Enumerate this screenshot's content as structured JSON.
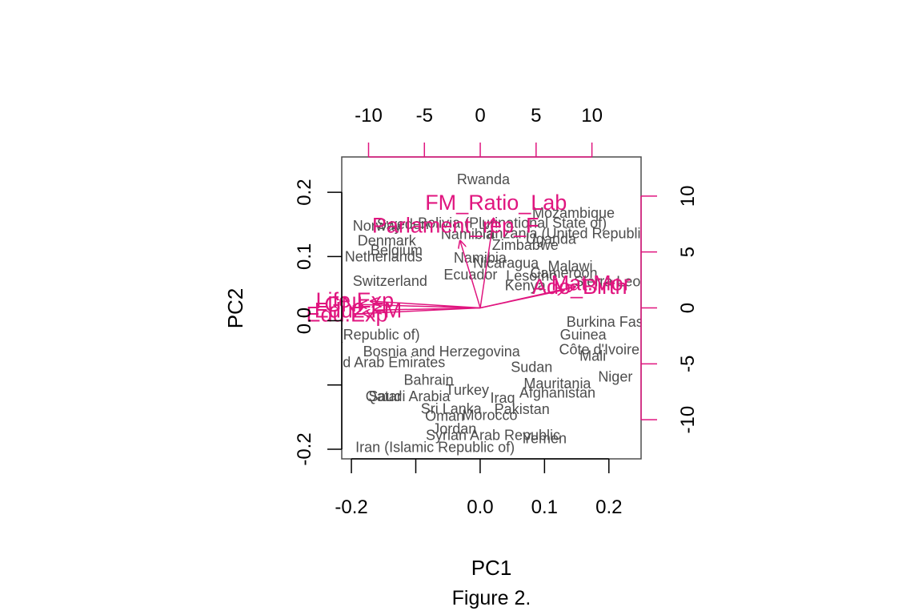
{
  "chart_data": {
    "type": "scatter",
    "xlabel": "PC1",
    "ylabel": "PC2",
    "caption": "Figure 2.",
    "colors": {
      "scores": "#4d4d4d",
      "loadings": "#e0157f",
      "frame": "#4d4d4d"
    },
    "score_axes": {
      "xlim": [
        -0.215,
        0.25
      ],
      "ylim": [
        -0.215,
        0.255
      ],
      "x_ticks": [
        -0.2,
        -0.1,
        0.0,
        0.1,
        0.2
      ],
      "x_tick_labels": [
        "-0.2",
        "",
        "0.0",
        "0.1",
        "0.2"
      ],
      "y_ticks": [
        -0.2,
        -0.1,
        0.0,
        0.1,
        0.2
      ],
      "y_tick_labels": [
        "-0.2",
        "",
        "0.0",
        "0.1",
        "0.2"
      ]
    },
    "loading_axes": {
      "xlim": [
        -12.4,
        14.4
      ],
      "ylim": [
        -13.5,
        13.5
      ],
      "x_ticks": [
        -10,
        -5,
        0,
        5,
        10
      ],
      "x_tick_labels": [
        "-10",
        "-5",
        "0",
        "5",
        "10"
      ],
      "y_ticks": [
        -10,
        -5,
        0,
        5,
        10
      ],
      "y_tick_labels": [
        "-10",
        "-5",
        "0",
        "5",
        "10"
      ]
    },
    "countries": [
      {
        "name": "Rwanda",
        "x": 0.005,
        "y": 0.22
      },
      {
        "name": "Mozambique",
        "x": 0.145,
        "y": 0.168
      },
      {
        "name": "Bolivia (Plurinational State of)",
        "x": 0.05,
        "y": 0.152
      },
      {
        "name": "Norway",
        "x": -0.16,
        "y": 0.148
      },
      {
        "name": "Sweden",
        "x": -0.12,
        "y": 0.15
      },
      {
        "name": "Tanzania (United Republic",
        "x": 0.13,
        "y": 0.136
      },
      {
        "name": "Uganda",
        "x": 0.11,
        "y": 0.127
      },
      {
        "name": "Namibia",
        "x": -0.02,
        "y": 0.135
      },
      {
        "name": "Denmark",
        "x": -0.145,
        "y": 0.125
      },
      {
        "name": "Zimbabwe",
        "x": 0.07,
        "y": 0.118
      },
      {
        "name": "Belgium",
        "x": -0.13,
        "y": 0.11
      },
      {
        "name": "Netherlands",
        "x": -0.15,
        "y": 0.1
      },
      {
        "name": "Namibia",
        "x": 0.0,
        "y": 0.098
      },
      {
        "name": "Nicaragua",
        "x": 0.04,
        "y": 0.09
      },
      {
        "name": "Malawi",
        "x": 0.14,
        "y": 0.085
      },
      {
        "name": "Ecuador",
        "x": -0.015,
        "y": 0.072
      },
      {
        "name": "Lesotho",
        "x": 0.08,
        "y": 0.07
      },
      {
        "name": "Cameroon",
        "x": 0.13,
        "y": 0.074
      },
      {
        "name": "Sierra Leone",
        "x": 0.21,
        "y": 0.061
      },
      {
        "name": "Switzerland",
        "x": -0.14,
        "y": 0.062
      },
      {
        "name": "Kenya",
        "x": 0.07,
        "y": 0.055
      },
      {
        "name": "Burkina Faso",
        "x": 0.2,
        "y": -0.002
      },
      {
        "name": "Guinea",
        "x": 0.16,
        "y": -0.022
      },
      {
        "name": "Côte d'Ivoire",
        "x": 0.185,
        "y": -0.045
      },
      {
        "name": "Mali",
        "x": 0.175,
        "y": -0.055
      },
      {
        "name": "Niger",
        "x": 0.21,
        "y": -0.087
      },
      {
        "name": "Mauritania",
        "x": 0.12,
        "y": -0.098
      },
      {
        "name": "Afghanistan",
        "x": 0.12,
        "y": -0.112
      },
      {
        "name": "Sudan",
        "x": 0.08,
        "y": -0.072
      },
      {
        "name": "Pakistan",
        "x": 0.065,
        "y": -0.138
      },
      {
        "name": "Syrian Arab Republic",
        "x": 0.02,
        "y": -0.178
      },
      {
        "name": "Yemen",
        "x": 0.1,
        "y": -0.183
      },
      {
        "name": "Iran (Islamic Republic of)",
        "x": -0.07,
        "y": -0.197
      },
      {
        "name": "Jordan",
        "x": -0.04,
        "y": -0.168
      },
      {
        "name": "Oman",
        "x": -0.055,
        "y": -0.148
      },
      {
        "name": "Morocco",
        "x": 0.015,
        "y": -0.147
      },
      {
        "name": "Sri Lanka",
        "x": -0.045,
        "y": -0.137
      },
      {
        "name": "Turkey",
        "x": -0.02,
        "y": -0.108
      },
      {
        "name": "Iraq",
        "x": 0.035,
        "y": -0.12
      },
      {
        "name": "Qatar",
        "x": -0.15,
        "y": -0.118
      },
      {
        "name": "Saudi Arabia",
        "x": -0.11,
        "y": -0.118
      },
      {
        "name": "Bahrain",
        "x": -0.08,
        "y": -0.092
      },
      {
        "name": "United Arab Emirates",
        "x": -0.16,
        "y": -0.065
      },
      {
        "name": "Bosnia and Herzegovina",
        "x": -0.06,
        "y": -0.048
      },
      {
        "name": "Korea (Republic of)",
        "x": -0.19,
        "y": -0.022
      }
    ],
    "loadings": [
      {
        "name": "FM_Ratio_Lab",
        "x": 1.2,
        "y": 8.0
      },
      {
        "name": "Parlament_rep_F",
        "x": -1.8,
        "y": 6.0
      },
      {
        "name": "Adol_Birth",
        "x": 7.5,
        "y": 1.6
      },
      {
        "name": "Mat_Mor",
        "x": 8.5,
        "y": 1.9
      },
      {
        "name": "Life_Exp",
        "x": -9.8,
        "y": 0.6
      },
      {
        "name": "Edu_Exp",
        "x": -10.5,
        "y": -0.5
      },
      {
        "name": "GNI",
        "x": -10.8,
        "y": 0.3
      },
      {
        "name": "Edu2_FM",
        "x": -9.5,
        "y": -0.2
      }
    ],
    "loading_label_text": {
      "FM_Ratio_Lab": "FM_Ratio_Lab",
      "Parlament_rep_F": "Parlament_rep_F",
      "Adol_Birth": "Ado_Birth",
      "Mat_Mor": "Mat.Mor",
      "Life_Exp": "Life.Exp",
      "Edu_Exp": "Edu.Exp",
      "GNI": "GNI",
      "Edu2_FM": "Edu2.FM"
    }
  }
}
